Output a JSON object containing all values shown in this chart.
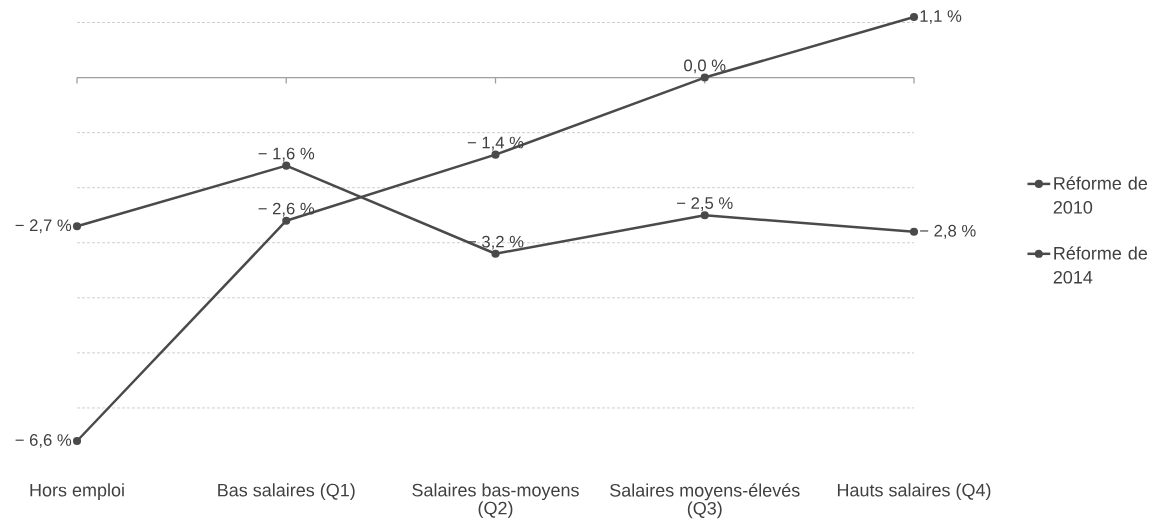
{
  "chart_data": {
    "type": "line",
    "categories": [
      "Hors emploi",
      "Bas salaires (Q1)",
      "Salaires bas-moyens (Q2)",
      "Salaires moyens-élevés (Q3)",
      "Hauts salaires (Q4)"
    ],
    "series": [
      {
        "name": "Réforme de 2010",
        "color": "#4a4a4a",
        "values": [
          -2.7,
          -1.6,
          -3.2,
          -2.5,
          -2.8
        ],
        "value_labels": [
          "− 2,7 %",
          "− 1,6 %",
          "− 3,2 %",
          "− 2,5 %",
          "− 2,8 %"
        ]
      },
      {
        "name": "Réforme de 2014",
        "color": "#4a4a4a",
        "values": [
          -6.6,
          -2.6,
          -1.4,
          0.0,
          1.1
        ],
        "value_labels": [
          "− 6,6 %",
          "− 2,6 %",
          "− 1,4 %",
          "0,0 %",
          "1,1 %"
        ]
      }
    ],
    "yticks": [
      {
        "value": -6,
        "label": null
      },
      {
        "value": -5,
        "label": null
      },
      {
        "value": -4,
        "label": null
      },
      {
        "value": -3,
        "label": null
      },
      {
        "value": -2,
        "label": null
      },
      {
        "value": -1,
        "label": null
      },
      {
        "value": 0,
        "label": null
      },
      {
        "value": 1,
        "label": null
      }
    ],
    "grid": "y",
    "legend": "right",
    "marker": "circle",
    "line_style": "solid",
    "tick_labels": "x"
  }
}
